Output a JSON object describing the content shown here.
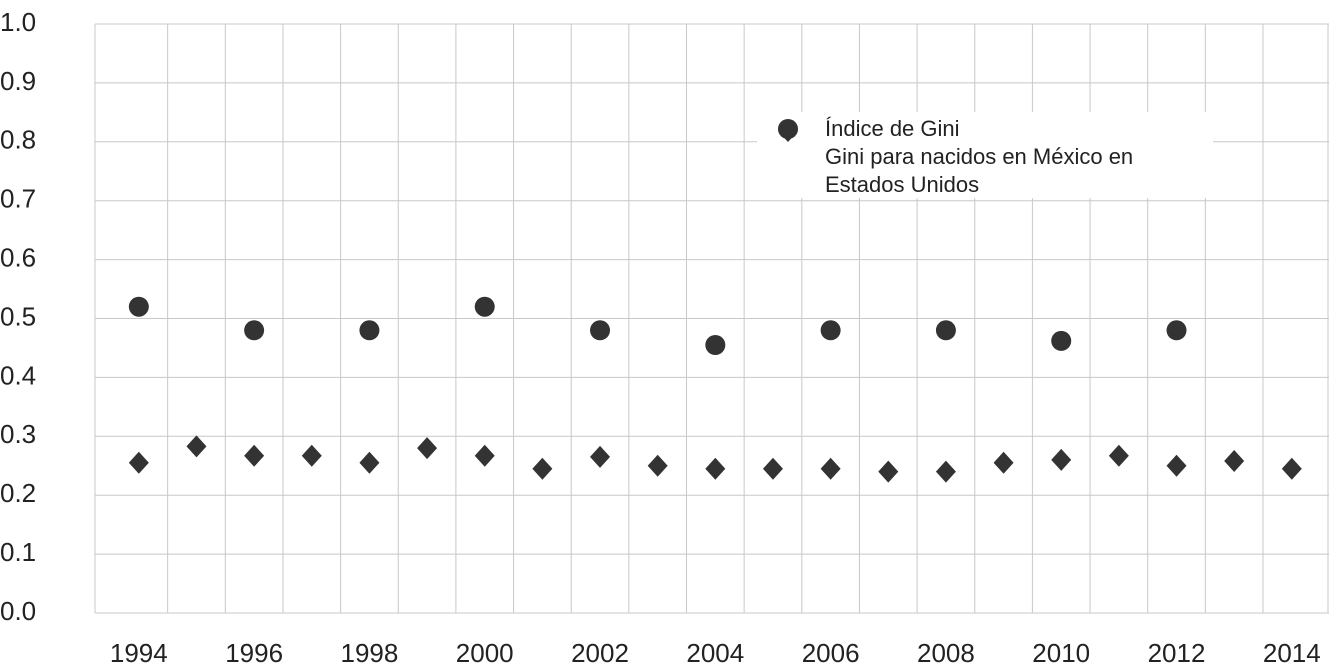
{
  "chart_data": {
    "type": "scatter",
    "categories": [
      "1994",
      null,
      "1996",
      null,
      "1998",
      null,
      "2000",
      null,
      "2002",
      null,
      "2004",
      null,
      "2006",
      null,
      "2008",
      null,
      "2010",
      null,
      "2012",
      null,
      "2014"
    ],
    "series": [
      {
        "name": "Índice de Gini",
        "color": "#333333",
        "marker": "circle",
        "values": [
          0.52,
          null,
          0.48,
          null,
          0.48,
          null,
          0.52,
          null,
          0.48,
          null,
          0.455,
          null,
          0.48,
          null,
          0.48,
          null,
          0.462,
          null,
          0.48,
          null,
          null
        ]
      },
      {
        "name": "Gini para nacidos en México en Estados Unidos",
        "color": "#333333",
        "marker": "diamond",
        "values": [
          0.255,
          0.283,
          0.267,
          0.267,
          0.255,
          0.28,
          0.267,
          0.245,
          0.265,
          0.25,
          0.245,
          0.245,
          0.245,
          0.24,
          0.24,
          0.255,
          0.26,
          0.267,
          0.25,
          0.258,
          0.245
        ]
      }
    ],
    "ylim": [
      0,
      1
    ],
    "yticks": [
      {
        "value": 0,
        "label": "0.0"
      },
      0.1,
      0.2,
      0.3,
      0.4,
      0.5,
      0.6,
      0.7,
      0.8,
      0.9,
      {
        "value": 1,
        "label": "1.0"
      }
    ],
    "grid": true
  }
}
